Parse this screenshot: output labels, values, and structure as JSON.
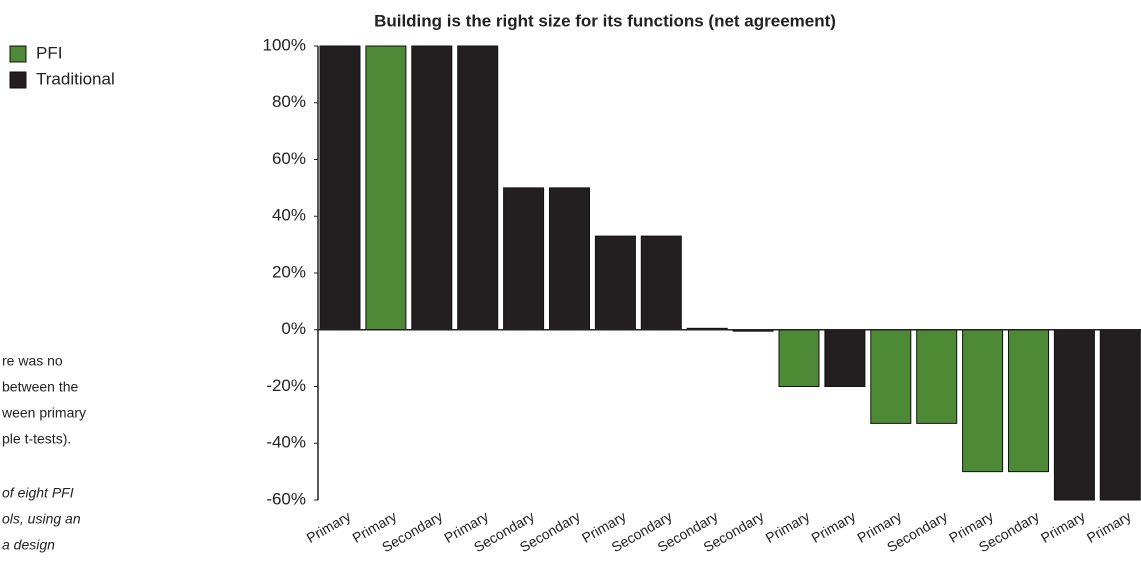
{
  "chart_data": {
    "type": "bar",
    "title": "Building is the right size for its functions (net agreement)",
    "categories": [
      "Primary",
      "Primary",
      "Secondary",
      "Primary",
      "Secondary",
      "Secondary",
      "Primary",
      "Secondary",
      "Secondary",
      "Secondary",
      "Primary",
      "Primary",
      "Primary",
      "Secondary",
      "Primary",
      "Secondary",
      "Primary",
      "Primary"
    ],
    "series": [
      {
        "name": "PFI",
        "color": "#4e8a36",
        "values": [
          null,
          100,
          null,
          null,
          null,
          null,
          null,
          null,
          null,
          null,
          -20,
          null,
          -33,
          -33,
          -50,
          -50,
          null,
          null
        ]
      },
      {
        "name": "Traditional",
        "color": "#231f20",
        "values": [
          100,
          null,
          100,
          100,
          50,
          50,
          33,
          33,
          0.5,
          -0.5,
          null,
          -20,
          null,
          null,
          null,
          null,
          -60,
          -60
        ]
      }
    ],
    "ylim": [
      -60,
      100
    ],
    "yticks": [
      {
        "value": 100,
        "label": "100%"
      },
      {
        "value": 80,
        "label": "80%"
      },
      {
        "value": 60,
        "label": "60%"
      },
      {
        "value": 40,
        "label": "40%"
      },
      {
        "value": 20,
        "label": "20%"
      },
      {
        "value": 0,
        "label": "0%"
      },
      {
        "value": -20,
        "label": "-20%"
      },
      {
        "value": -40,
        "label": "-40%"
      },
      {
        "value": -60,
        "label": "-60%"
      }
    ],
    "legend": "top-left",
    "notes": [
      "re was no",
      "between the",
      "ween primary",
      "ple t-tests)."
    ],
    "notes_italic": [
      "of eight PFI",
      "ols, using an",
      "a design"
    ]
  }
}
